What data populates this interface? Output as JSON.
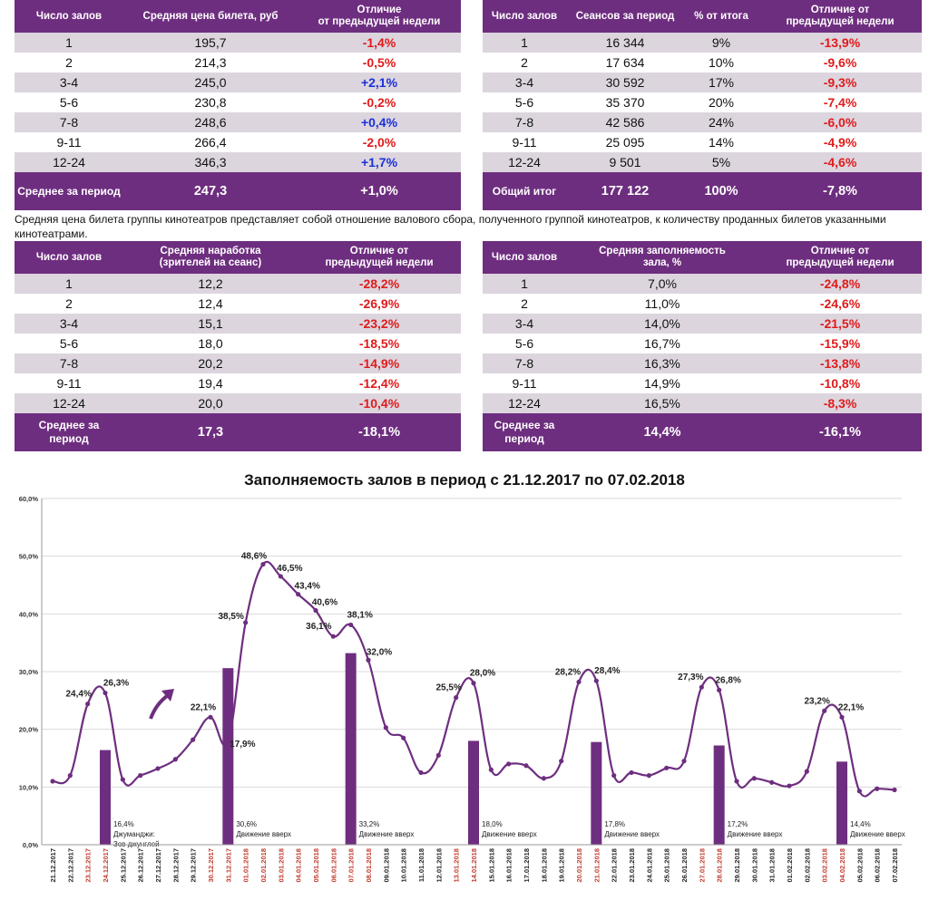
{
  "tables": {
    "ticket_price": {
      "headers": [
        "Число залов",
        "Средняя цена билета, руб",
        "Отличие\nот предыдущей недели"
      ],
      "rows": [
        [
          "1",
          "195,7",
          "-1,4%"
        ],
        [
          "2",
          "214,3",
          "-0,5%"
        ],
        [
          "3-4",
          "245,0",
          "+2,1%"
        ],
        [
          "5-6",
          "230,8",
          "-0,2%"
        ],
        [
          "7-8",
          "248,6",
          "+0,4%"
        ],
        [
          "9-11",
          "266,4",
          "-2,0%"
        ],
        [
          "12-24",
          "346,3",
          "+1,7%"
        ]
      ],
      "footer": [
        "Среднее за период",
        "247,3",
        "+1,0%"
      ]
    },
    "sessions": {
      "headers": [
        "Число залов",
        "Сеансов за период",
        "% от итога",
        "Отличие от\nпредыдущей недели"
      ],
      "rows": [
        [
          "1",
          "16 344",
          "9%",
          "-13,9%"
        ],
        [
          "2",
          "17 634",
          "10%",
          "-9,6%"
        ],
        [
          "3-4",
          "30 592",
          "17%",
          "-9,3%"
        ],
        [
          "5-6",
          "35 370",
          "20%",
          "-7,4%"
        ],
        [
          "7-8",
          "42 586",
          "24%",
          "-6,0%"
        ],
        [
          "9-11",
          "25 095",
          "14%",
          "-4,9%"
        ],
        [
          "12-24",
          "9 501",
          "5%",
          "-4,6%"
        ]
      ],
      "footer": [
        "Общий итог",
        "177 122",
        "100%",
        "-7,8%"
      ]
    },
    "spectators": {
      "headers": [
        "Число залов",
        "Средняя наработка\n(зрителей на сеанс)",
        "Отличие от\nпредыдущей недели"
      ],
      "rows": [
        [
          "1",
          "12,2",
          "-28,2%"
        ],
        [
          "2",
          "12,4",
          "-26,9%"
        ],
        [
          "3-4",
          "15,1",
          "-23,2%"
        ],
        [
          "5-6",
          "18,0",
          "-18,5%"
        ],
        [
          "7-8",
          "20,2",
          "-14,9%"
        ],
        [
          "9-11",
          "19,4",
          "-12,4%"
        ],
        [
          "12-24",
          "20,0",
          "-10,4%"
        ]
      ],
      "footer": [
        "Среднее за\nпериод",
        "17,3",
        "-18,1%"
      ]
    },
    "occupancy": {
      "headers": [
        "Число залов",
        "Средняя заполняемость\nзала, %",
        "Отличие от\nпредыдущей недели"
      ],
      "rows": [
        [
          "1",
          "7,0%",
          "-24,8%"
        ],
        [
          "2",
          "11,0%",
          "-24,6%"
        ],
        [
          "3-4",
          "14,0%",
          "-21,5%"
        ],
        [
          "5-6",
          "16,7%",
          "-15,9%"
        ],
        [
          "7-8",
          "16,3%",
          "-13,8%"
        ],
        [
          "9-11",
          "14,9%",
          "-10,8%"
        ],
        [
          "12-24",
          "16,5%",
          "-8,3%"
        ]
      ],
      "footer": [
        "Среднее за\nпериод",
        "14,4%",
        "-16,1%"
      ]
    }
  },
  "note": "Средняя цена билета группы кинотеатров представляет собой отношение валового сбора, полученного группой кинотеатров, к количеству проданных билетов указанными кинотеатрами.",
  "colors": {
    "purple": "#6e2e7f",
    "stripe": "#dcd5de",
    "negative": "#e01b1b",
    "positive": "#1a30d8",
    "weekend_date": "#c0392b"
  },
  "chart_data": {
    "type": "line",
    "title": "Заполняемость залов в период с 21.12.2017 по 07.02.2018",
    "xlabel": "",
    "ylabel": "",
    "ylim": [
      0,
      60
    ],
    "yticks": [
      "0,0%",
      "10,0%",
      "20,0%",
      "30,0%",
      "40,0%",
      "50,0%",
      "60,0%"
    ],
    "grid": true,
    "categories": [
      "21.12.2017",
      "22.12.2017",
      "23.12.2017",
      "24.12.2017",
      "25.12.2017",
      "26.12.2017",
      "27.12.2017",
      "28.12.2017",
      "29.12.2017",
      "30.12.2017",
      "31.12.2017",
      "01.01.2018",
      "02.01.2018",
      "03.01.2018",
      "04.01.2018",
      "05.01.2018",
      "06.01.2018",
      "07.01.2018",
      "08.01.2018",
      "09.01.2018",
      "10.01.2018",
      "11.01.2018",
      "12.01.2018",
      "13.01.2018",
      "14.01.2018",
      "15.01.2018",
      "16.01.2018",
      "17.01.2018",
      "18.01.2018",
      "19.01.2018",
      "20.01.2018",
      "21.01.2018",
      "22.01.2018",
      "23.01.2018",
      "24.01.2018",
      "25.01.2018",
      "26.01.2018",
      "27.01.2018",
      "28.01.2018",
      "29.01.2018",
      "30.01.2018",
      "31.01.2018",
      "01.02.2018",
      "02.02.2018",
      "03.02.2018",
      "04.02.2018",
      "05.02.2018",
      "06.02.2018",
      "07.02.2018"
    ],
    "weekend_indices": [
      2,
      3,
      9,
      10,
      11,
      12,
      13,
      14,
      15,
      16,
      17,
      18,
      23,
      24,
      30,
      31,
      37,
      38,
      44,
      45
    ],
    "series": [
      {
        "values": [
          11.0,
          12.0,
          24.4,
          26.3,
          11.3,
          12.0,
          13.2,
          14.8,
          18.2,
          22.1,
          17.9,
          38.5,
          48.6,
          46.5,
          43.4,
          40.6,
          36.1,
          38.1,
          32.0,
          20.3,
          18.5,
          12.5,
          15.5,
          25.5,
          28.0,
          13.0,
          14.0,
          13.7,
          11.5,
          14.5,
          28.2,
          28.4,
          12.0,
          12.5,
          12.0,
          13.3,
          14.5,
          27.3,
          26.8,
          11.0,
          11.5,
          10.8,
          10.2,
          12.7,
          23.2,
          22.1,
          9.3,
          9.7,
          9.5
        ]
      }
    ],
    "point_labels": [
      {
        "index": 2,
        "text": "24,4%"
      },
      {
        "index": 3,
        "text": "26,3%"
      },
      {
        "index": 9,
        "text": "22,1%"
      },
      {
        "index": 10,
        "text": "17,9%"
      },
      {
        "index": 11,
        "text": "38,5%"
      },
      {
        "index": 12,
        "text": "48,6%"
      },
      {
        "index": 13,
        "text": "46,5%"
      },
      {
        "index": 14,
        "text": "43,4%"
      },
      {
        "index": 15,
        "text": "40,6%"
      },
      {
        "index": 16,
        "text": "36,1%"
      },
      {
        "index": 17,
        "text": "38,1%"
      },
      {
        "index": 18,
        "text": "32,0%"
      },
      {
        "index": 23,
        "text": "25,5%"
      },
      {
        "index": 24,
        "text": "28,0%"
      },
      {
        "index": 30,
        "text": "28,2%"
      },
      {
        "index": 31,
        "text": "28,4%"
      },
      {
        "index": 37,
        "text": "27,3%"
      },
      {
        "index": 38,
        "text": "26,8%"
      },
      {
        "index": 44,
        "text": "23,2%"
      },
      {
        "index": 45,
        "text": "22,1%"
      }
    ],
    "bars": [
      {
        "index": 3,
        "value": 16.4,
        "label": "16,4%",
        "caption": [
          "Джуманджи:",
          "Зов джунглей"
        ]
      },
      {
        "index": 10,
        "value": 30.6,
        "label": "30,6%",
        "caption": [
          "Движение вверх"
        ]
      },
      {
        "index": 17,
        "value": 33.2,
        "label": "33,2%",
        "caption": [
          "Движение вверх"
        ]
      },
      {
        "index": 24,
        "value": 18.0,
        "label": "18,0%",
        "caption": [
          "Движение вверх"
        ]
      },
      {
        "index": 31,
        "value": 17.8,
        "label": "17,8%",
        "caption": [
          "Движение вверх"
        ]
      },
      {
        "index": 38,
        "value": 17.2,
        "label": "17,2%",
        "caption": [
          "Движение вверх"
        ]
      },
      {
        "index": 45,
        "value": 14.4,
        "label": "14,4%",
        "caption": [
          "Движение вверх"
        ]
      }
    ],
    "annotation_icon": "curved-up-arrow-icon"
  }
}
